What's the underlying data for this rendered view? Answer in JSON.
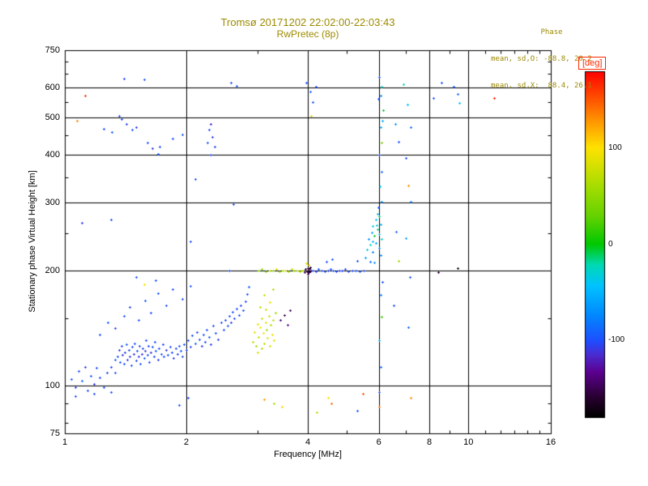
{
  "colors": {
    "background": "#ffffff",
    "title_text": "#9c8a00",
    "axis_text": "#000000",
    "grid": "#000000",
    "deg_label": "#ff2800"
  },
  "annotations": {
    "header": "Phase",
    "mean_sd_o": "mean, sd,O: -88.8, 20.2",
    "mean_sd_x": "mean, sd,X:  88.4, 26.1"
  },
  "chart_data": {
    "type": "scatter",
    "title": "Tromsø 20171202 22:02:00-22:03:43",
    "subtitle": "RwPretec (8p)",
    "xlabel": "Frequency [MHz]",
    "ylabel": "Stationary phase Virtual Height [km]",
    "x_scale": "log",
    "y_scale": "log",
    "xlim": [
      1,
      16
    ],
    "ylim": [
      75,
      750
    ],
    "x_ticks": [
      1,
      2,
      4,
      6,
      8,
      10,
      16
    ],
    "x_minor_ticks": [
      3,
      5,
      7,
      9,
      11,
      12,
      13,
      14,
      15
    ],
    "y_ticks": [
      75,
      100,
      200,
      300,
      400,
      500,
      600,
      750
    ],
    "y_minor_ticks": [
      80,
      90,
      150,
      250,
      350,
      450,
      550,
      650,
      700
    ],
    "grid": true,
    "colorbar": {
      "label": "[deg]",
      "min": -180,
      "max": 180,
      "ticks": [
        100,
        0,
        -100
      ],
      "stops": [
        [
          0.0,
          "#000000"
        ],
        [
          0.06,
          "#2a0033"
        ],
        [
          0.13,
          "#5c0090"
        ],
        [
          0.18,
          "#4b2bd0"
        ],
        [
          0.22,
          "#1e4eff"
        ],
        [
          0.3,
          "#008cff"
        ],
        [
          0.38,
          "#00c3ff"
        ],
        [
          0.44,
          "#00d9b4"
        ],
        [
          0.5,
          "#00c800"
        ],
        [
          0.58,
          "#64d200"
        ],
        [
          0.66,
          "#a0dc00"
        ],
        [
          0.74,
          "#e1e100"
        ],
        [
          0.78,
          "#ffe100"
        ],
        [
          0.86,
          "#ff9100"
        ],
        [
          0.93,
          "#ff4800"
        ],
        [
          1.0,
          "#ff0000"
        ]
      ]
    },
    "points_format": [
      "frequency_mhz",
      "virtual_height_km",
      "phase_deg"
    ],
    "points": [
      [
        1.04,
        104,
        -98
      ],
      [
        1.06,
        99,
        -105
      ],
      [
        1.08,
        109,
        -100
      ],
      [
        1.1,
        103,
        -92
      ],
      [
        1.12,
        112,
        -108
      ],
      [
        1.14,
        97,
        -100
      ],
      [
        1.16,
        106,
        -95
      ],
      [
        1.18,
        101,
        -110
      ],
      [
        1.2,
        111,
        -100
      ],
      [
        1.22,
        105,
        -103
      ],
      [
        1.25,
        99,
        -97
      ],
      [
        1.27,
        108,
        -106
      ],
      [
        1.06,
        94,
        -100
      ],
      [
        1.18,
        95,
        -102
      ],
      [
        1.3,
        96,
        -98
      ],
      [
        1.3,
        112,
        -104
      ],
      [
        1.33,
        108,
        -100
      ],
      [
        1.33,
        117,
        -95
      ],
      [
        1.35,
        119,
        -100
      ],
      [
        1.36,
        124,
        -108
      ],
      [
        1.37,
        115,
        -96
      ],
      [
        1.38,
        127,
        -104
      ],
      [
        1.39,
        120,
        -112
      ],
      [
        1.4,
        114,
        -99
      ],
      [
        1.41,
        122,
        -105
      ],
      [
        1.42,
        128,
        -95
      ],
      [
        1.43,
        117,
        -110
      ],
      [
        1.44,
        124,
        -100
      ],
      [
        1.45,
        119,
        -106
      ],
      [
        1.46,
        113,
        -97
      ],
      [
        1.47,
        126,
        -103
      ],
      [
        1.48,
        121,
        -112
      ],
      [
        1.49,
        129,
        -99
      ],
      [
        1.5,
        116,
        -105
      ],
      [
        1.51,
        123,
        -96
      ],
      [
        1.52,
        119,
        -108
      ],
      [
        1.53,
        127,
        -102
      ],
      [
        1.54,
        114,
        -98
      ],
      [
        1.55,
        121,
        -110
      ],
      [
        1.56,
        125,
        -100
      ],
      [
        1.57,
        118,
        -94
      ],
      [
        1.58,
        123,
        -107
      ],
      [
        1.59,
        131,
        -101
      ],
      [
        1.6,
        120,
        -97
      ],
      [
        1.61,
        127,
        -105
      ],
      [
        1.62,
        115,
        -100
      ],
      [
        1.63,
        122,
        -111
      ],
      [
        1.65,
        126,
        -98
      ],
      [
        1.66,
        119,
        -104
      ],
      [
        1.67,
        130,
        -100
      ],
      [
        1.68,
        123,
        -93
      ],
      [
        1.7,
        117,
        -106
      ],
      [
        1.71,
        125,
        -101
      ],
      [
        1.73,
        121,
        -97
      ],
      [
        1.75,
        128,
        -105
      ],
      [
        1.76,
        119,
        -100
      ],
      [
        1.78,
        124,
        -109
      ],
      [
        1.8,
        120,
        -96
      ],
      [
        1.82,
        126,
        -102
      ],
      [
        1.84,
        122,
        -100
      ],
      [
        1.86,
        118,
        -107
      ],
      [
        1.88,
        125,
        -99
      ],
      [
        1.9,
        121,
        -104
      ],
      [
        1.92,
        127,
        -100
      ],
      [
        1.94,
        123,
        -96
      ],
      [
        1.95,
        119,
        -102
      ],
      [
        1.97,
        128,
        -100
      ],
      [
        2.0,
        124,
        -106
      ],
      [
        2.02,
        131,
        -98
      ],
      [
        2.05,
        126,
        -103
      ],
      [
        2.07,
        135,
        -100
      ],
      [
        2.1,
        129,
        -95
      ],
      [
        2.12,
        138,
        -104
      ],
      [
        2.15,
        132,
        -100
      ],
      [
        2.18,
        127,
        -108
      ],
      [
        2.2,
        136,
        -97
      ],
      [
        2.22,
        130,
        -102
      ],
      [
        2.25,
        140,
        -100
      ],
      [
        2.28,
        134,
        -94
      ],
      [
        2.3,
        128,
        -105
      ],
      [
        2.33,
        143,
        -100
      ],
      [
        2.36,
        137,
        -99
      ],
      [
        2.4,
        132,
        -103
      ],
      [
        2.44,
        146,
        -100
      ],
      [
        2.47,
        140,
        -100
      ],
      [
        2.5,
        148,
        -104
      ],
      [
        2.53,
        143,
        -97
      ],
      [
        2.56,
        152,
        -101
      ],
      [
        2.58,
        146,
        -108
      ],
      [
        2.6,
        156,
        -99
      ],
      [
        2.63,
        150,
        -103
      ],
      [
        2.66,
        159,
        -96
      ],
      [
        2.7,
        153,
        -100
      ],
      [
        2.73,
        162,
        -105
      ],
      [
        2.76,
        157,
        -98
      ],
      [
        2.8,
        166,
        -102
      ],
      [
        2.83,
        173,
        -100
      ],
      [
        2.85,
        181,
        -95
      ],
      [
        1.22,
        136,
        -100
      ],
      [
        1.28,
        146,
        -95
      ],
      [
        1.33,
        141,
        -102
      ],
      [
        1.4,
        152,
        -98
      ],
      [
        1.45,
        160,
        -104
      ],
      [
        1.52,
        148,
        -100
      ],
      [
        1.58,
        167,
        -96
      ],
      [
        1.63,
        155,
        -101
      ],
      [
        1.7,
        174,
        -99
      ],
      [
        1.78,
        162,
        -103
      ],
      [
        1.85,
        178,
        -97
      ],
      [
        1.95,
        168,
        -100
      ],
      [
        2.05,
        182,
        -95
      ],
      [
        1.5,
        192,
        -100
      ],
      [
        1.68,
        188,
        -98
      ],
      [
        2.92,
        130,
        70
      ],
      [
        2.95,
        138,
        85
      ],
      [
        2.98,
        127,
        60
      ],
      [
        3.0,
        145,
        90
      ],
      [
        3.02,
        134,
        75
      ],
      [
        3.05,
        142,
        95
      ],
      [
        3.07,
        125,
        65
      ],
      [
        3.08,
        150,
        80
      ],
      [
        3.1,
        137,
        100
      ],
      [
        3.12,
        129,
        72
      ],
      [
        3.14,
        146,
        88
      ],
      [
        3.16,
        140,
        58
      ],
      [
        3.18,
        133,
        92
      ],
      [
        3.2,
        152,
        78
      ],
      [
        3.22,
        127,
        85
      ],
      [
        3.24,
        144,
        66
      ],
      [
        3.26,
        136,
        95
      ],
      [
        3.28,
        148,
        74
      ],
      [
        3.3,
        131,
        88
      ],
      [
        3.32,
        155,
        60
      ],
      [
        3.15,
        158,
        82
      ],
      [
        3.05,
        160,
        70
      ],
      [
        3.22,
        165,
        90
      ],
      [
        3.12,
        172,
        76
      ],
      [
        3.28,
        178,
        64
      ],
      [
        3.0,
        122,
        80
      ],
      [
        3.42,
        148,
        -140
      ],
      [
        3.5,
        153,
        -150
      ],
      [
        3.56,
        144,
        -132
      ],
      [
        3.62,
        157,
        -145
      ],
      [
        3.02,
        200,
        45
      ],
      [
        3.08,
        201,
        60
      ],
      [
        3.15,
        199,
        38
      ],
      [
        3.22,
        200,
        72
      ],
      [
        3.28,
        200,
        55
      ],
      [
        3.34,
        201,
        85
      ],
      [
        3.4,
        199,
        48
      ],
      [
        3.46,
        200,
        66
      ],
      [
        3.52,
        200,
        92
      ],
      [
        3.58,
        199,
        58
      ],
      [
        3.64,
        201,
        75
      ],
      [
        3.7,
        200,
        50
      ],
      [
        3.76,
        200,
        82
      ],
      [
        3.82,
        199,
        63
      ],
      [
        3.88,
        200,
        70
      ],
      [
        3.94,
        201,
        88
      ],
      [
        3.97,
        208,
        92
      ],
      [
        4.02,
        206,
        85
      ],
      [
        3.92,
        198,
        -152
      ],
      [
        3.95,
        201,
        -160
      ],
      [
        3.98,
        199,
        -148
      ],
      [
        4.0,
        202,
        -155
      ],
      [
        4.02,
        198,
        -165
      ],
      [
        4.04,
        201,
        -150
      ],
      [
        4.06,
        199,
        -158
      ],
      [
        4.08,
        200,
        -145
      ],
      [
        4.0,
        196,
        -150
      ],
      [
        4.05,
        203,
        -170
      ],
      [
        4.12,
        200,
        -100
      ],
      [
        4.18,
        199,
        -104
      ],
      [
        4.25,
        201,
        -98
      ],
      [
        4.32,
        200,
        -102
      ],
      [
        4.4,
        199,
        -96
      ],
      [
        4.48,
        200,
        -105
      ],
      [
        4.55,
        201,
        -100
      ],
      [
        4.62,
        200,
        -94
      ],
      [
        4.7,
        199,
        -103
      ],
      [
        4.78,
        200,
        -99
      ],
      [
        4.86,
        200,
        -106
      ],
      [
        4.95,
        201,
        -100
      ],
      [
        5.05,
        199,
        -97
      ],
      [
        5.15,
        200,
        -102
      ],
      [
        5.25,
        200,
        -100
      ],
      [
        5.38,
        199,
        -95
      ],
      [
        5.5,
        200,
        -101
      ],
      [
        4.45,
        210,
        -100
      ],
      [
        4.6,
        214,
        -97
      ],
      [
        5.3,
        212,
        -103
      ],
      [
        5.55,
        216,
        -62
      ],
      [
        5.6,
        226,
        -40
      ],
      [
        5.65,
        241,
        -70
      ],
      [
        5.7,
        233,
        -22
      ],
      [
        5.75,
        251,
        -55
      ],
      [
        5.8,
        223,
        -78
      ],
      [
        5.8,
        261,
        -32
      ],
      [
        5.85,
        246,
        -5
      ],
      [
        5.9,
        236,
        -60
      ],
      [
        5.9,
        271,
        -45
      ],
      [
        5.95,
        256,
        -18
      ],
      [
        6.0,
        229,
        -68
      ],
      [
        6.0,
        249,
        -36
      ],
      [
        6.05,
        263,
        -52
      ],
      [
        6.1,
        241,
        -26
      ],
      [
        6.05,
        219,
        -74
      ],
      [
        5.95,
        281,
        -48
      ],
      [
        5.7,
        211,
        -88
      ],
      [
        5.85,
        209,
        -64
      ],
      [
        6.0,
        276,
        -12
      ],
      [
        5.78,
        238,
        -50
      ],
      [
        5.92,
        262,
        -30
      ],
      [
        6.02,
        640,
        -100
      ],
      [
        6.1,
        602,
        -30
      ],
      [
        5.98,
        560,
        -96
      ],
      [
        6.14,
        522,
        -4
      ],
      [
        6.05,
        472,
        -58
      ],
      [
        6.1,
        431,
        38
      ],
      [
        6.0,
        401,
        -100
      ],
      [
        6.08,
        362,
        -88
      ],
      [
        6.04,
        331,
        -42
      ],
      [
        6.1,
        302,
        -70
      ],
      [
        5.98,
        292,
        -98
      ],
      [
        6.06,
        570,
        -75
      ],
      [
        6.12,
        490,
        -55
      ],
      [
        6.05,
        172,
        -78
      ],
      [
        6.1,
        151,
        18
      ],
      [
        6.0,
        131,
        -62
      ],
      [
        6.05,
        112,
        -88
      ],
      [
        6.02,
        96,
        -95
      ],
      [
        6.12,
        186,
        -100
      ],
      [
        6.0,
        88,
        145
      ],
      [
        3.96,
        618,
        -100
      ],
      [
        4.05,
        585,
        -92
      ],
      [
        4.12,
        548,
        -98
      ],
      [
        4.08,
        505,
        82
      ],
      [
        4.18,
        602,
        -104
      ],
      [
        2.58,
        616,
        -100
      ],
      [
        2.66,
        604,
        -94
      ],
      [
        1.4,
        632,
        -102
      ],
      [
        1.57,
        628,
        -97
      ],
      [
        1.12,
        572,
        165
      ],
      [
        1.07,
        490,
        132
      ],
      [
        1.25,
        468,
        -100
      ],
      [
        1.31,
        458,
        -92
      ],
      [
        1.36,
        506,
        -100
      ],
      [
        1.42,
        481,
        -105
      ],
      [
        1.47,
        466,
        -96
      ],
      [
        1.5,
        472,
        -110
      ],
      [
        1.38,
        496,
        -101
      ],
      [
        1.6,
        431,
        -100
      ],
      [
        1.65,
        416,
        -108
      ],
      [
        1.7,
        402,
        -95
      ],
      [
        1.72,
        421,
        -102
      ],
      [
        1.85,
        441,
        -99
      ],
      [
        2.28,
        466,
        -100
      ],
      [
        2.3,
        481,
        -118
      ],
      [
        2.32,
        446,
        -108
      ],
      [
        2.26,
        431,
        -96
      ],
      [
        2.35,
        421,
        -103
      ],
      [
        2.3,
        401,
        -100
      ],
      [
        1.95,
        452,
        -97
      ],
      [
        1.1,
        266,
        -108
      ],
      [
        1.3,
        271,
        -100
      ],
      [
        2.1,
        346,
        -96
      ],
      [
        1.57,
        184,
        95
      ],
      [
        2.62,
        297,
        -100
      ],
      [
        2.05,
        238,
        -102
      ],
      [
        2.55,
        200,
        -100
      ],
      [
        3.12,
        92,
        128
      ],
      [
        3.3,
        90,
        62
      ],
      [
        3.45,
        88,
        105
      ],
      [
        4.48,
        93,
        98
      ],
      [
        4.58,
        90,
        142
      ],
      [
        5.48,
        95,
        150
      ],
      [
        5.3,
        86,
        -100
      ],
      [
        1.92,
        89,
        -100
      ],
      [
        2.02,
        93,
        -104
      ],
      [
        4.2,
        85,
        70
      ],
      [
        7.05,
        542,
        -48
      ],
      [
        7.18,
        472,
        -88
      ],
      [
        7.0,
        392,
        -100
      ],
      [
        7.1,
        332,
        128
      ],
      [
        7.2,
        302,
        -78
      ],
      [
        7.0,
        242,
        -58
      ],
      [
        7.15,
        192,
        -100
      ],
      [
        7.1,
        142,
        -88
      ],
      [
        7.2,
        93,
        130
      ],
      [
        6.6,
        482,
        -68
      ],
      [
        6.7,
        432,
        -100
      ],
      [
        6.62,
        252,
        -90
      ],
      [
        6.72,
        212,
        55
      ],
      [
        6.52,
        162,
        -100
      ],
      [
        8.4,
        198,
        -158
      ],
      [
        8.2,
        562,
        -100
      ],
      [
        8.57,
        618,
        -100
      ],
      [
        9.2,
        602,
        -98
      ],
      [
        9.4,
        576,
        -88
      ],
      [
        9.5,
        546,
        -42
      ],
      [
        9.4,
        202,
        -168
      ],
      [
        6.9,
        612,
        -25
      ],
      [
        11.6,
        562,
        172
      ]
    ]
  }
}
